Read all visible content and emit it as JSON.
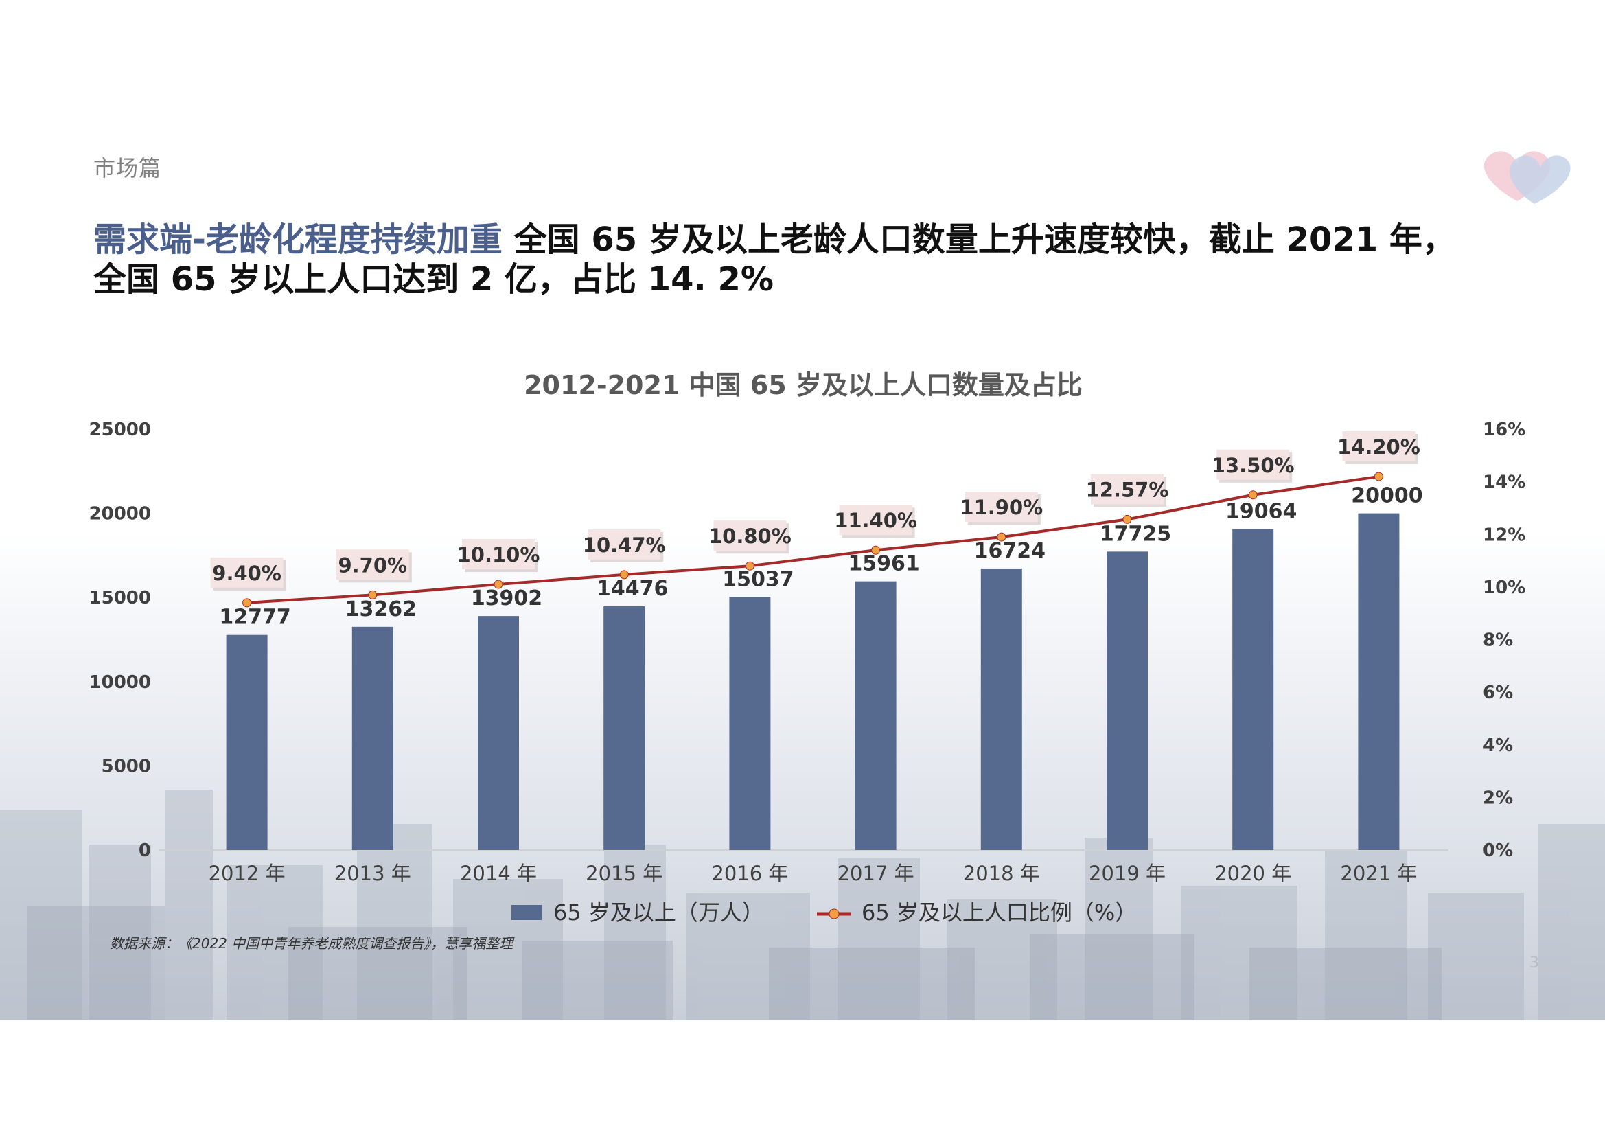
{
  "header": {
    "section": "市场篇",
    "headline_accent": "需求端-老龄化程度持续加重",
    "headline_rest": "全国 65 岁及以上老龄人口数量上升速度较快，截止 2021 年，",
    "headline_line2": "全国 65 岁以上人口达到 2 亿，占比 14. 2%"
  },
  "chart_data": {
    "type": "bar",
    "title": "2012-2021 中国 65 岁及以上人口数量及占比",
    "categories": [
      "2012 年",
      "2013 年",
      "2014 年",
      "2015 年",
      "2016 年",
      "2017 年",
      "2018 年",
      "2019 年",
      "2020 年",
      "2021 年"
    ],
    "y_ticks": [
      "0",
      "5000",
      "10000",
      "15000",
      "20000",
      "25000"
    ],
    "y2_ticks": [
      "0%",
      "2%",
      "4%",
      "6%",
      "8%",
      "10%",
      "12%",
      "14%",
      "16%"
    ],
    "ylim": [
      0,
      25000
    ],
    "y2lim": [
      0,
      16
    ],
    "series": [
      {
        "name": "65 岁及以上（万人）",
        "type": "bar",
        "color": "#566a8f",
        "values": [
          12777,
          13262,
          13902,
          14476,
          15037,
          15961,
          16724,
          17725,
          19064,
          20000
        ],
        "labels": [
          "12777",
          "13262",
          "13902",
          "14476",
          "15037",
          "15961",
          "16724",
          "17725",
          "19064",
          "20000"
        ]
      },
      {
        "name": "65 岁及以上人口比例（%）",
        "type": "line",
        "axis": "right",
        "color": "#a52a2a",
        "marker_color": "#f0a040",
        "values": [
          9.4,
          9.7,
          10.1,
          10.47,
          10.8,
          11.4,
          11.9,
          12.57,
          13.5,
          14.2
        ],
        "labels": [
          "9.40%",
          "9.70%",
          "10.10%",
          "10.47%",
          "10.80%",
          "11.40%",
          "11.90%",
          "12.57%",
          "13.50%",
          "14.20%"
        ]
      }
    ],
    "legend_position": "bottom",
    "grid": false
  },
  "footer": {
    "source": "数据来源：《2022 中国中青年养老成熟度调查报告》，慧享福整理",
    "page": "3"
  },
  "logo_icon": "heart-logo-icon"
}
